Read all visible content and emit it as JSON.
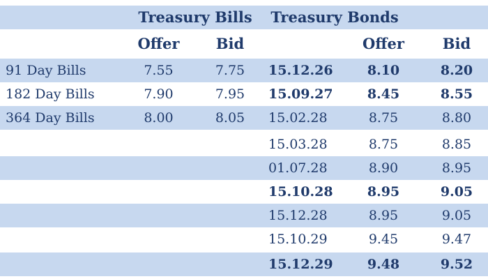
{
  "header": {
    "bills_title": "Treasury Bills",
    "bonds_title": "Treasury Bonds",
    "bills_offer": "Offer",
    "bills_bid": "Bid",
    "bonds_offer": "Offer",
    "bonds_bid": "Bid"
  },
  "bills": [
    {
      "name": "91 Day Bills",
      "offer": "7.55",
      "bid": "7.75"
    },
    {
      "name": "182 Day Bills",
      "offer": "7.90",
      "bid": "7.95"
    },
    {
      "name": "364 Day Bills",
      "offer": "8.00",
      "bid": "8.05"
    }
  ],
  "bonds": [
    {
      "date": "15.12.26",
      "offer": "8.10",
      "bid": "8.20"
    },
    {
      "date": "15.09.27",
      "offer": "8.45",
      "bid": "8.55"
    },
    {
      "date": "15.02.28",
      "offer": "8.75",
      "bid": "8.80"
    },
    {
      "date": "15.03.28",
      "offer": "8.75",
      "bid": "8.85"
    },
    {
      "date": "01.07.28",
      "offer": "8.90",
      "bid": "8.95"
    },
    {
      "date": "15.10.28",
      "offer": "8.95",
      "bid": "9.05"
    },
    {
      "date": "15.12.28",
      "offer": "8.95",
      "bid": "9.05"
    },
    {
      "date": "15.10.29",
      "offer": "9.45",
      "bid": "9.47"
    },
    {
      "date": "15.12.29",
      "offer": "9.48",
      "bid": "9.52"
    }
  ],
  "colors": {
    "shade": "#c7d8ef",
    "text": "#1f3a6b"
  }
}
